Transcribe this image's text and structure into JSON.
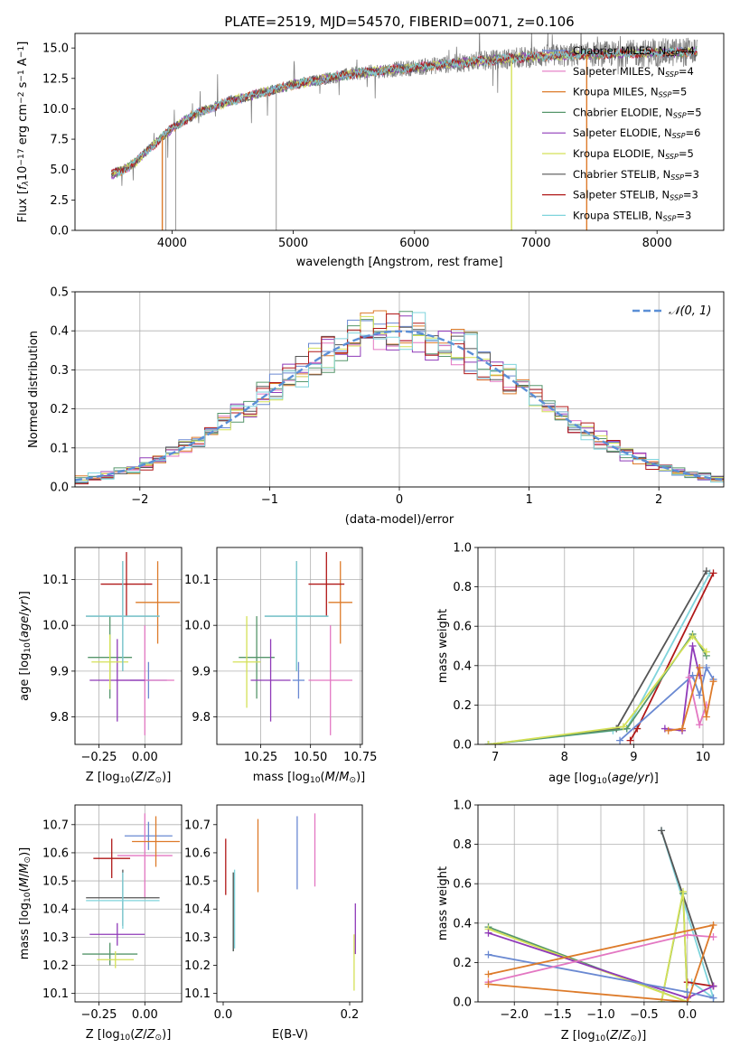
{
  "figure": {
    "title": "PLATE=2519, MJD=54570, FIBERID=0071, z=0.106"
  },
  "colors": {
    "Chabrier MILES": "#6a89d2",
    "Salpeter MILES": "#e377c2",
    "Kroupa MILES": "#dd7b2a",
    "Chabrier ELODIE": "#56966b",
    "Salpeter ELODIE": "#8f3ab8",
    "Kroupa ELODIE": "#d4e157",
    "Chabrier STELIB": "#555555",
    "Salpeter STELIB": "#b01818",
    "Kroupa STELIB": "#7fd4dc",
    "data": "#7f7f7f",
    "normal": "#5b8fd6"
  },
  "chart_data": [
    {
      "type": "line",
      "xlabel": "wavelength [Angstrom, rest frame]",
      "ylabel": "Flux [f_λ 10^-17 erg cm^-2 s^-1 A^-1]",
      "xlim": [
        3200,
        8550
      ],
      "ylim": [
        0,
        16.2
      ],
      "xticks": [
        4000,
        5000,
        6000,
        7000,
        8000
      ],
      "yticks": [
        0.0,
        2.5,
        5.0,
        7.5,
        10.0,
        12.5,
        15.0
      ],
      "legend_position": "upper right",
      "legend": [
        {
          "name": "Chabrier MILES",
          "nssp": "4"
        },
        {
          "name": "Salpeter MILES",
          "nssp": "4"
        },
        {
          "name": "Kroupa MILES",
          "nssp": "5"
        },
        {
          "name": "Chabrier ELODIE",
          "nssp": "5"
        },
        {
          "name": "Salpeter ELODIE",
          "nssp": "6"
        },
        {
          "name": "Kroupa ELODIE",
          "nssp": "5"
        },
        {
          "name": "Chabrier STELIB",
          "nssp": "3"
        },
        {
          "name": "Salpeter STELIB",
          "nssp": "3"
        },
        {
          "name": "Kroupa STELIB",
          "nssp": "3"
        }
      ],
      "model_continuum": {
        "x": [
          3500,
          3600,
          3700,
          3800,
          4000,
          4200,
          4500,
          5000,
          5500,
          6000,
          6500,
          7000,
          7500,
          8000,
          8300
        ],
        "y": [
          4.6,
          5.0,
          5.6,
          6.6,
          8.4,
          9.6,
          10.7,
          12.0,
          12.9,
          13.4,
          13.9,
          14.3,
          14.5,
          14.6,
          14.7
        ]
      },
      "dropouts": [
        {
          "x": 3920,
          "series": "Kroupa MILES"
        },
        {
          "x": 6800,
          "series": "Kroupa ELODIE"
        },
        {
          "x": 7420,
          "series": "Kroupa MILES"
        }
      ]
    },
    {
      "type": "histogram",
      "xlabel": "(data-model)/error",
      "ylabel": "Normed distribution",
      "xlim": [
        -2.5,
        2.5
      ],
      "ylim": [
        0,
        0.5
      ],
      "xticks": [
        -2,
        -1,
        0,
        1,
        2
      ],
      "yticks": [
        0.0,
        0.1,
        0.2,
        0.3,
        0.4,
        0.5
      ],
      "grid": true,
      "legend_position": "upper right",
      "normal_label": "𝒩(0, 1)",
      "bin_width": 0.1,
      "bin_start": -2.5
    },
    {
      "type": "errorbar",
      "xlabel": "Z [log10(Z/Z⊙)]",
      "ylabel": "age [log10(age/yr)]",
      "xlim": [
        -0.38,
        0.2
      ],
      "ylim": [
        9.74,
        10.17
      ],
      "xticks": [
        -0.25,
        0.0
      ],
      "yticks": [
        9.8,
        9.9,
        10.0,
        10.1
      ],
      "grid": true,
      "points": [
        {
          "series": "Chabrier MILES",
          "x": 0.02,
          "y": 9.88,
          "xerr": 0.1,
          "yerr": 0.04
        },
        {
          "series": "Salpeter MILES",
          "x": 0.0,
          "y": 9.88,
          "xerr": 0.16,
          "yerr": 0.12
        },
        {
          "series": "Kroupa MILES",
          "x": 0.07,
          "y": 10.05,
          "xerr": 0.12,
          "yerr": 0.09
        },
        {
          "series": "Chabrier ELODIE",
          "x": -0.19,
          "y": 9.93,
          "xerr": 0.12,
          "yerr": 0.09
        },
        {
          "series": "Salpeter ELODIE",
          "x": -0.15,
          "y": 9.88,
          "xerr": 0.15,
          "yerr": 0.09
        },
        {
          "series": "Kroupa ELODIE",
          "x": -0.19,
          "y": 9.92,
          "xerr": 0.1,
          "yerr": 0.06
        },
        {
          "series": "Chabrier STELIB",
          "x": -0.12,
          "y": 10.02,
          "xerr": 0.2,
          "yerr": 0.12
        },
        {
          "series": "Salpeter STELIB",
          "x": -0.1,
          "y": 10.09,
          "xerr": 0.14,
          "yerr": 0.07
        },
        {
          "series": "Kroupa STELIB",
          "x": -0.12,
          "y": 10.02,
          "xerr": 0.2,
          "yerr": 0.12
        }
      ]
    },
    {
      "type": "errorbar",
      "xlabel": "mass [log10(M/M⊙)]",
      "ylabel": "",
      "xlim": [
        10.03,
        10.76
      ],
      "ylim": [
        9.74,
        10.17
      ],
      "xticks": [
        10.25,
        10.5,
        10.75
      ],
      "yticks": [
        9.8,
        9.9,
        10.0,
        10.1
      ],
      "grid": true,
      "points": [
        {
          "series": "Chabrier MILES",
          "x": 10.44,
          "y": 9.88,
          "xerr": 0.03,
          "yerr": 0.04
        },
        {
          "series": "Salpeter MILES",
          "x": 10.6,
          "y": 9.88,
          "xerr": 0.11,
          "yerr": 0.12
        },
        {
          "series": "Kroupa MILES",
          "x": 10.65,
          "y": 10.05,
          "xerr": 0.06,
          "yerr": 0.09
        },
        {
          "series": "Chabrier ELODIE",
          "x": 10.23,
          "y": 9.93,
          "xerr": 0.09,
          "yerr": 0.09
        },
        {
          "series": "Salpeter ELODIE",
          "x": 10.3,
          "y": 9.88,
          "xerr": 0.1,
          "yerr": 0.09
        },
        {
          "series": "Kroupa ELODIE",
          "x": 10.18,
          "y": 9.92,
          "xerr": 0.07,
          "yerr": 0.1
        },
        {
          "series": "Chabrier STELIB",
          "x": 10.43,
          "y": 10.02,
          "xerr": 0.16,
          "yerr": 0.12
        },
        {
          "series": "Salpeter STELIB",
          "x": 10.58,
          "y": 10.09,
          "xerr": 0.09,
          "yerr": 0.07
        },
        {
          "series": "Kroupa STELIB",
          "x": 10.43,
          "y": 10.02,
          "xerr": 0.16,
          "yerr": 0.12
        }
      ]
    },
    {
      "type": "line",
      "xlabel": "age [log10(age/yr)]",
      "ylabel": "mass weight",
      "xlim": [
        6.75,
        10.3
      ],
      "ylim": [
        0,
        1.0
      ],
      "xticks": [
        7,
        8,
        9,
        10
      ],
      "yticks": [
        0.0,
        0.2,
        0.4,
        0.6,
        0.8,
        1.0
      ],
      "grid": true,
      "series": [
        {
          "name": "Kroupa STELIB",
          "x": [
            6.9,
            8.7,
            8.9,
            10.1
          ],
          "y": [
            0.0,
            0.07,
            0.08,
            0.87
          ]
        },
        {
          "name": "Chabrier STELIB",
          "x": [
            6.9,
            8.75,
            10.05
          ],
          "y": [
            0.0,
            0.08,
            0.88
          ]
        },
        {
          "name": "Salpeter STELIB",
          "x": [
            8.95,
            9.05,
            10.15
          ],
          "y": [
            0.02,
            0.08,
            0.87
          ]
        },
        {
          "name": "Chabrier ELODIE",
          "x": [
            6.9,
            8.9,
            9.85,
            10.05
          ],
          "y": [
            0.0,
            0.08,
            0.56,
            0.45
          ]
        },
        {
          "name": "Kroupa ELODIE",
          "x": [
            6.9,
            8.85,
            9.85,
            10.05
          ],
          "y": [
            0.0,
            0.09,
            0.55,
            0.47
          ]
        },
        {
          "name": "Salpeter ELODIE",
          "x": [
            9.45,
            9.7,
            9.85,
            9.95
          ],
          "y": [
            0.08,
            0.07,
            0.5,
            0.35
          ]
        },
        {
          "name": "Chabrier MILES",
          "x": [
            8.8,
            9.85,
            9.95,
            10.05,
            10.15
          ],
          "y": [
            0.02,
            0.35,
            0.25,
            0.39,
            0.33
          ]
        },
        {
          "name": "Salpeter MILES",
          "x": [
            9.8,
            9.95,
            10.05
          ],
          "y": [
            0.34,
            0.1,
            0.2
          ]
        },
        {
          "name": "Kroupa MILES",
          "x": [
            9.5,
            9.7,
            9.95,
            10.05,
            10.15
          ],
          "y": [
            0.07,
            0.08,
            0.39,
            0.14,
            0.32
          ]
        }
      ]
    },
    {
      "type": "errorbar",
      "xlabel": "Z [log10(Z/Z⊙)]",
      "ylabel": "mass [log10(M/M⊙)]",
      "xlim": [
        -0.38,
        0.2
      ],
      "ylim": [
        10.07,
        10.77
      ],
      "xticks": [
        -0.25,
        0.0
      ],
      "yticks": [
        10.1,
        10.2,
        10.3,
        10.4,
        10.5,
        10.6,
        10.7
      ],
      "grid": true,
      "points": [
        {
          "series": "Chabrier MILES",
          "x": 0.02,
          "y": 10.66,
          "xerr": 0.13,
          "yerr": 0.05
        },
        {
          "series": "Salpeter MILES",
          "x": 0.0,
          "y": 10.59,
          "xerr": 0.15,
          "yerr": 0.15
        },
        {
          "series": "Kroupa MILES",
          "x": 0.06,
          "y": 10.64,
          "xerr": 0.13,
          "yerr": 0.09
        },
        {
          "series": "Chabrier ELODIE",
          "x": -0.19,
          "y": 10.24,
          "xerr": 0.15,
          "yerr": 0.04
        },
        {
          "series": "Salpeter ELODIE",
          "x": -0.15,
          "y": 10.31,
          "xerr": 0.15,
          "yerr": 0.04
        },
        {
          "series": "Kroupa ELODIE",
          "x": -0.16,
          "y": 10.22,
          "xerr": 0.1,
          "yerr": 0.03
        },
        {
          "series": "Chabrier STELIB",
          "x": -0.12,
          "y": 10.44,
          "xerr": 0.2,
          "yerr": 0.1
        },
        {
          "series": "Salpeter STELIB",
          "x": -0.18,
          "y": 10.58,
          "xerr": 0.1,
          "yerr": 0.07
        },
        {
          "series": "Kroupa STELIB",
          "x": -0.12,
          "y": 10.43,
          "xerr": 0.2,
          "yerr": 0.1
        }
      ]
    },
    {
      "type": "errorbar",
      "xlabel": "E(B-V)",
      "ylabel": "",
      "xlim": [
        -0.01,
        0.22
      ],
      "ylim": [
        10.07,
        10.77
      ],
      "xticks": [
        0.0,
        0.2
      ],
      "yticks": [
        10.1,
        10.2,
        10.3,
        10.4,
        10.5,
        10.6,
        10.7
      ],
      "grid": false,
      "points": [
        {
          "series": "Chabrier MILES",
          "x": 0.117,
          "y": 10.6,
          "xerr": 0,
          "yerr": 0.13
        },
        {
          "series": "Salpeter MILES",
          "x": 0.145,
          "y": 10.61,
          "xerr": 0,
          "yerr": 0.13
        },
        {
          "series": "Kroupa MILES",
          "x": 0.055,
          "y": 10.59,
          "xerr": 0,
          "yerr": 0.13
        },
        {
          "series": "Chabrier ELODIE",
          "x": 0.016,
          "y": 10.39,
          "xerr": 0,
          "yerr": 0.14
        },
        {
          "series": "Salpeter ELODIE",
          "x": 0.209,
          "y": 10.33,
          "xerr": 0,
          "yerr": 0.09
        },
        {
          "series": "Kroupa ELODIE",
          "x": 0.207,
          "y": 10.21,
          "xerr": 0,
          "yerr": 0.1
        },
        {
          "series": "Chabrier STELIB",
          "x": 0.016,
          "y": 10.39,
          "xerr": 0,
          "yerr": 0.14
        },
        {
          "series": "Salpeter STELIB",
          "x": 0.004,
          "y": 10.55,
          "xerr": 0,
          "yerr": 0.1
        },
        {
          "series": "Kroupa STELIB",
          "x": 0.018,
          "y": 10.4,
          "xerr": 0,
          "yerr": 0.14
        }
      ]
    },
    {
      "type": "line",
      "xlabel": "Z [log10(Z/Z⊙)]",
      "ylabel": "mass weight",
      "xlim": [
        -2.42,
        0.42
      ],
      "ylim": [
        0,
        1.0
      ],
      "xticks": [
        -2.0,
        -1.5,
        -1.0,
        -0.5,
        0.0
      ],
      "yticks": [
        0.0,
        0.2,
        0.4,
        0.6,
        0.8,
        1.0
      ],
      "grid": true,
      "series": [
        {
          "name": "Kroupa STELIB",
          "x": [
            -0.3,
            0.3,
            0.05
          ],
          "y": [
            0.87,
            0.02,
            0.1
          ]
        },
        {
          "name": "Chabrier STELIB",
          "x": [
            -0.3,
            0.3
          ],
          "y": [
            0.87,
            0.08
          ]
        },
        {
          "name": "Salpeter STELIB",
          "x": [
            0.0,
            0.3
          ],
          "y": [
            0.1,
            0.08
          ]
        },
        {
          "name": "Chabrier ELODIE",
          "x": [
            -2.3,
            0.0,
            -0.05,
            -0.3
          ],
          "y": [
            0.38,
            0.0,
            0.55,
            0.0
          ]
        },
        {
          "name": "Kroupa ELODIE",
          "x": [
            -2.3,
            0.0,
            -0.05,
            -0.3
          ],
          "y": [
            0.37,
            0.0,
            0.56,
            0.0
          ]
        },
        {
          "name": "Salpeter ELODIE",
          "x": [
            -2.3,
            0.0,
            0.3
          ],
          "y": [
            0.35,
            0.02,
            0.08
          ]
        },
        {
          "name": "Chabrier MILES",
          "x": [
            -2.3,
            0.0,
            0.3
          ],
          "y": [
            0.24,
            0.05,
            0.02
          ]
        },
        {
          "name": "Salpeter MILES",
          "x": [
            -2.3,
            0.0,
            0.3
          ],
          "y": [
            0.1,
            0.34,
            0.33
          ]
        },
        {
          "name": "Kroupa MILES",
          "x": [
            -2.3,
            0.0,
            0.3,
            -2.3
          ],
          "y": [
            0.09,
            0.0,
            0.39,
            0.14
          ]
        }
      ]
    }
  ]
}
